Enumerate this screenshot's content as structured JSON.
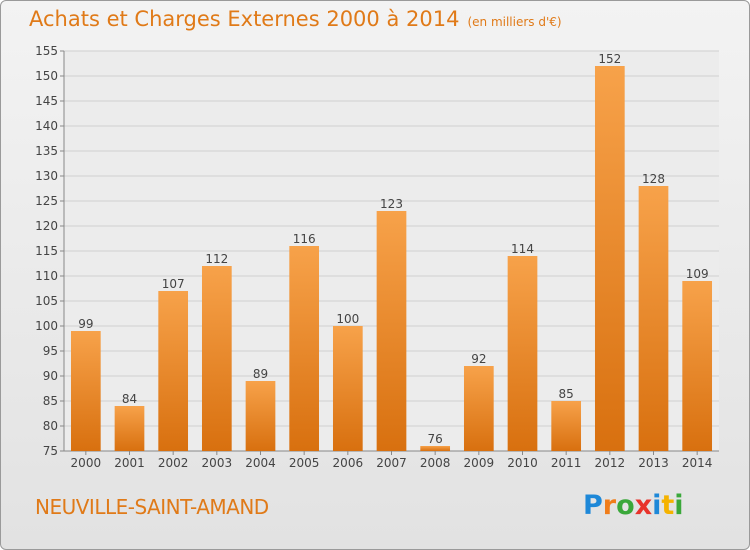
{
  "header": {
    "title": "Achats et Charges Externes 2000 à 2014",
    "subtitle": "(en milliers d'€)"
  },
  "footer": {
    "city": "NEUVILLE-SAINT-AMAND",
    "logo": {
      "letters": [
        "P",
        "r",
        "o",
        "x",
        "i",
        "t",
        "i"
      ],
      "colors": [
        "#1e88d8",
        "#f07d1a",
        "#3aa83a",
        "#e8332b",
        "#1e88d8",
        "#f5b300",
        "#3aa83a"
      ]
    }
  },
  "colors": {
    "accent": "#e07a18",
    "bar": "#ef922f"
  },
  "chart_data": {
    "type": "bar",
    "title": "Achats et Charges Externes 2000 à 2014",
    "subtitle": "(en milliers d'€)",
    "categories": [
      "2000",
      "2001",
      "2002",
      "2003",
      "2004",
      "2005",
      "2006",
      "2007",
      "2008",
      "2009",
      "2010",
      "2011",
      "2012",
      "2013",
      "2014"
    ],
    "values": [
      99,
      84,
      107,
      112,
      89,
      116,
      100,
      123,
      76,
      92,
      114,
      85,
      152,
      128,
      109
    ],
    "ylim": [
      75,
      155
    ],
    "yticks": [
      75,
      80,
      85,
      90,
      95,
      100,
      105,
      110,
      115,
      120,
      125,
      130,
      135,
      140,
      145,
      150,
      155
    ],
    "grid": true,
    "show_value_labels": true
  }
}
